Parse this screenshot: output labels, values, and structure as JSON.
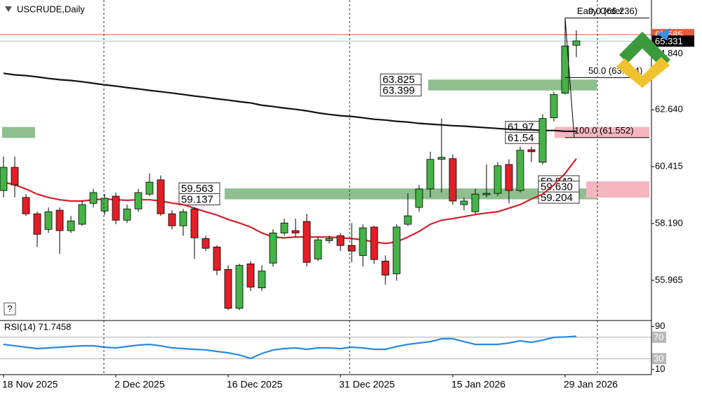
{
  "chart_data": {
    "type": "candlestick",
    "title": "USCRUDE,Daily",
    "help": "?",
    "categories": [
      "18 Nov 2025",
      null,
      null,
      null,
      null,
      null,
      null,
      null,
      null,
      null,
      "2 Dec 2025",
      null,
      null,
      null,
      null,
      null,
      null,
      null,
      null,
      null,
      "16 Dec 2025",
      null,
      null,
      null,
      null,
      null,
      null,
      null,
      null,
      null,
      "31 Dec 2025",
      null,
      null,
      null,
      null,
      null,
      null,
      null,
      null,
      null,
      "15 Jan 2026",
      null,
      null,
      null,
      null,
      null,
      null,
      null,
      null,
      null,
      "29 Jan 2026",
      null
    ],
    "candles": {
      "up_color": "#46b346",
      "down_color": "#e41e26",
      "open": [
        59.48,
        60.39,
        59.21,
        58.57,
        57.96,
        58.71,
        57.91,
        58.16,
        58.98,
        58.68,
        59.26,
        58.32,
        58.76,
        59.34,
        59.9,
        58.57,
        58.1,
        58.76,
        57.6,
        57.27,
        56.39,
        54.87,
        56.61,
        55.67,
        56.64,
        57.82,
        57.91,
        58.27,
        56.8,
        57.52,
        57.71,
        57.33,
        56.94,
        58.05,
        56.72,
        56.22,
        58.16,
        58.82,
        59.54,
        60.7,
        60.73,
        58.93,
        58.65,
        59.32,
        59.37,
        60.5,
        59.48,
        61.08,
        60.59,
        62.33,
        63.29,
        65.17
      ],
      "high": [
        60.81,
        60.81,
        59.34,
        58.65,
        58.82,
        58.82,
        58.49,
        59.07,
        59.54,
        59.34,
        59.4,
        58.93,
        59.54,
        60.15,
        60.07,
        58.71,
        58.76,
        58.82,
        57.71,
        57.33,
        56.55,
        56.61,
        56.72,
        56.55,
        57.96,
        58.38,
        58.38,
        58.57,
        57.66,
        57.71,
        57.82,
        58.21,
        58.16,
        58.1,
        56.94,
        58.16,
        59.37,
        59.7,
        61.0,
        62.3,
        60.9,
        59.21,
        59.54,
        60.5,
        60.59,
        60.7,
        61.2,
        61.2,
        62.46,
        63.35,
        66.24,
        65.75
      ],
      "low": [
        59.21,
        59.21,
        58.49,
        57.27,
        57.82,
        57.0,
        57.82,
        58.1,
        58.82,
        58.52,
        58.16,
        58.21,
        58.65,
        59.26,
        58.49,
        57.96,
        57.71,
        56.8,
        57.11,
        56.17,
        54.8,
        54.8,
        55.55,
        55.55,
        56.5,
        57.71,
        57.66,
        56.5,
        56.72,
        57.41,
        57.11,
        56.67,
        56.5,
        56.61,
        55.8,
        55.95,
        58.1,
        58.65,
        59.21,
        59.4,
        58.93,
        58.71,
        58.57,
        59.21,
        59.26,
        58.98,
        59.4,
        60.59,
        60.5,
        62.19,
        63.24,
        64.7
      ],
      "close": [
        60.39,
        59.7,
        58.57,
        57.77,
        58.65,
        57.91,
        58.29,
        58.93,
        59.4,
        59.18,
        58.32,
        58.76,
        59.4,
        59.81,
        58.57,
        58.1,
        58.65,
        57.63,
        57.22,
        56.36,
        54.87,
        56.55,
        55.7,
        56.33,
        57.82,
        58.21,
        57.82,
        56.67,
        57.55,
        57.6,
        57.33,
        57.11,
        58.02,
        56.78,
        56.17,
        58.05,
        58.49,
        59.54,
        60.7,
        60.78,
        59.07,
        59.07,
        59.34,
        59.37,
        60.45,
        59.48,
        61.06,
        61.0,
        62.3,
        63.24,
        65.14,
        65.34
      ]
    },
    "moving_averages": [
      {
        "color": "#111111",
        "values": [
          64.07,
          64.01,
          63.98,
          63.93,
          63.87,
          63.82,
          63.79,
          63.74,
          63.68,
          63.62,
          63.57,
          63.51,
          63.46,
          63.4,
          63.35,
          63.3,
          63.24,
          63.18,
          63.13,
          63.07,
          63.02,
          62.96,
          62.91,
          62.82,
          62.77,
          62.71,
          62.66,
          62.6,
          62.52,
          62.46,
          62.41,
          62.38,
          62.33,
          62.27,
          62.24,
          62.19,
          62.16,
          62.11,
          62.08,
          62.05,
          62.02,
          62.0,
          61.97,
          61.94,
          61.91,
          61.88,
          61.86,
          61.86,
          61.83,
          61.83,
          61.8,
          61.8
        ]
      },
      {
        "color": "#d4202a",
        "values": [
          59.81,
          59.7,
          59.54,
          59.34,
          59.21,
          59.12,
          59.07,
          59.07,
          59.12,
          59.15,
          59.12,
          59.1,
          59.12,
          59.12,
          59.07,
          58.99,
          58.93,
          58.79,
          58.65,
          58.52,
          58.35,
          58.21,
          58.05,
          57.82,
          57.66,
          57.63,
          57.66,
          57.66,
          57.66,
          57.66,
          57.63,
          57.6,
          57.55,
          57.47,
          57.41,
          57.47,
          57.66,
          57.88,
          58.16,
          58.32,
          58.38,
          58.46,
          58.54,
          58.6,
          58.65,
          58.79,
          58.93,
          59.15,
          59.34,
          59.7,
          60.15,
          60.73
        ]
      }
    ],
    "ylim": [
      54.42,
      66.94
    ],
    "yticks": [
      {
        "value": 64.84,
        "label": "64.840"
      },
      {
        "value": 62.64,
        "label": "62.640"
      },
      {
        "value": 60.415,
        "label": "60.415"
      },
      {
        "value": 58.19,
        "label": "58.190"
      },
      {
        "value": 55.965,
        "label": "55.965"
      }
    ],
    "price_lines": [
      {
        "value": 65.585,
        "color": "#e8593c"
      },
      {
        "value": 65.331,
        "color": "#000000"
      }
    ],
    "zones": [
      {
        "high": 63.825,
        "low": 63.399,
        "color": "#8fbf8f",
        "labels": [
          63.825,
          63.399
        ]
      },
      {
        "high": 61.97,
        "low": 61.54,
        "color": "#8fbf8f",
        "color2": "#f6b6bf",
        "labels": [
          61.97,
          61.54
        ]
      },
      {
        "high": 59.563,
        "low": 59.137,
        "color": "#8fbf8f",
        "labels": [
          59.563,
          59.137
        ]
      },
      {
        "high": 59.842,
        "low": 59.204,
        "color": "#f6b6bf",
        "labels": [
          59.842,
          {
            "value": 59.63,
            "label": "59.630"
          },
          59.204
        ]
      }
    ],
    "fibonacci": {
      "name": "Easy Order",
      "levels": [
        {
          "value": 66.236,
          "label": "0.0 (66.236)"
        },
        {
          "value": 63.904,
          "label": "50.0 (63.904)"
        },
        {
          "value": 61.552,
          "label": "100.0 (61.552)"
        }
      ]
    },
    "rsi": {
      "label": "RSI(14) 71.7458",
      "color": "#2a8ae0",
      "ylim": [
        0,
        100
      ],
      "yticks": [
        90,
        10
      ],
      "levels": [
        70,
        30
      ],
      "values": [
        56.6,
        53.9,
        51.3,
        48.7,
        50.0,
        51.3,
        52.6,
        53.9,
        53.9,
        51.3,
        50.0,
        52.6,
        55.3,
        56.6,
        53.9,
        50.0,
        48.7,
        47.4,
        46.1,
        43.4,
        40.8,
        36.8,
        30.3,
        39.5,
        46.1,
        48.7,
        50.0,
        47.4,
        50.0,
        50.0,
        48.7,
        51.3,
        50.0,
        47.4,
        47.4,
        52.6,
        56.6,
        59.2,
        61.8,
        67.1,
        67.1,
        61.8,
        56.6,
        56.6,
        56.6,
        59.2,
        63.2,
        60.5,
        64.5,
        69.7,
        70.5,
        71.75
      ]
    }
  }
}
